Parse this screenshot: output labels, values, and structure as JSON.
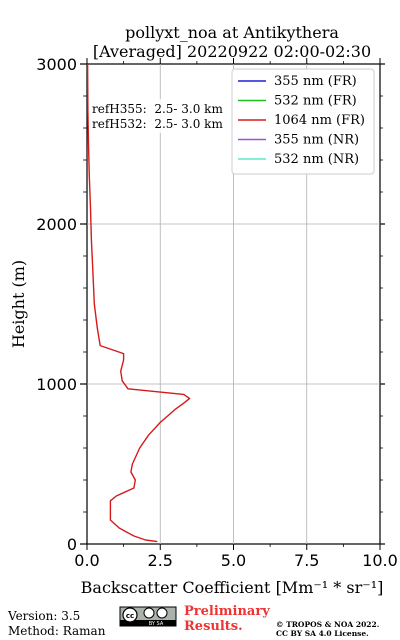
{
  "chart_data": {
    "type": "line",
    "title": "pollyxt_noa at Antikythera",
    "subtitle": "[Averaged] 20220922 02:00-02:30",
    "xlabel": "Backscatter Coefficient [Mm⁻¹ * sr⁻¹]",
    "ylabel": "Height (m)",
    "xlim": [
      0,
      10
    ],
    "ylim": [
      0,
      3000
    ],
    "xticks": [
      0,
      2.5,
      5,
      7.5,
      10
    ],
    "xtick_labels": [
      "0.0",
      "2.5",
      "5.0",
      "7.5",
      "10.0"
    ],
    "yticks": [
      0,
      1000,
      2000,
      3000
    ],
    "ytick_labels": [
      "0",
      "1000",
      "2000",
      "3000"
    ],
    "grid": true,
    "legend_position": "top-right",
    "annotations": [
      "refH355:  2.5- 3.0 km",
      "refH532:  2.5- 3.0 km"
    ],
    "series": [
      {
        "name": "355 nm (FR)",
        "color": "#1f1fd6",
        "x": [],
        "y": []
      },
      {
        "name": "532 nm (FR)",
        "color": "#1fbf1f",
        "x": [],
        "y": []
      },
      {
        "name": "1064 nm (FR)",
        "color": "#d61a1a",
        "x": [
          2.4,
          2.0,
          1.6,
          1.1,
          0.8,
          0.8,
          1.0,
          1.6,
          1.65,
          1.5,
          1.55,
          1.8,
          2.1,
          2.5,
          3.0,
          3.3,
          3.5,
          3.3,
          1.4,
          1.2,
          1.15,
          1.25,
          1.25,
          0.45,
          0.35,
          0.25,
          0.2,
          0.15,
          0.12,
          0.08,
          0.05,
          0.03,
          0.02
        ],
        "y": [
          15,
          25,
          50,
          100,
          150,
          270,
          300,
          350,
          400,
          450,
          500,
          600,
          680,
          760,
          840,
          880,
          910,
          935,
          970,
          1020,
          1080,
          1150,
          1190,
          1240,
          1350,
          1500,
          1700,
          1900,
          2100,
          2300,
          2500,
          2700,
          3000
        ]
      },
      {
        "name": "355 nm (NR)",
        "color": "#a64fd9",
        "x": [],
        "y": []
      },
      {
        "name": "532 nm (NR)",
        "color": "#5de8c8",
        "x": [],
        "y": []
      }
    ]
  },
  "footer": {
    "version": "Version: 3.5",
    "method": "Method: Raman",
    "cc_badge": "cc",
    "cc_by_sa": "BY SA",
    "preliminary_line1": "Preliminary",
    "preliminary_line2": "Results.",
    "copyright_line1": "© TROPOS & NOA 2022.",
    "copyright_line2": "CC BY SA 4.0 License."
  }
}
